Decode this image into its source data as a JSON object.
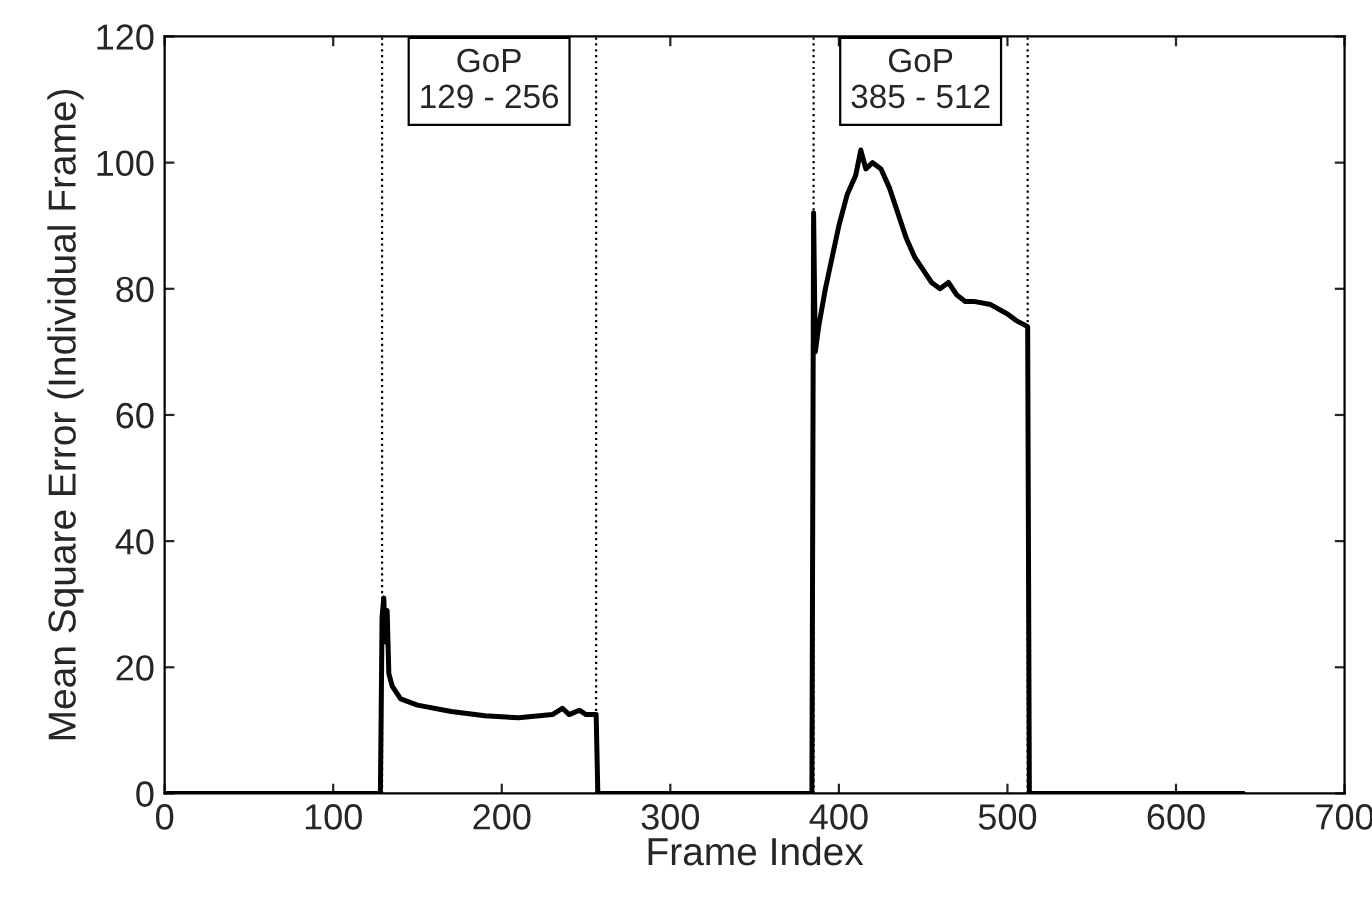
{
  "chart_data": {
    "type": "line",
    "xlabel": "Frame Index",
    "ylabel": "Mean Square Error (Individual Frame)",
    "xlim": [
      0,
      700
    ],
    "xticks": [
      0,
      100,
      200,
      300,
      400,
      500,
      600,
      700
    ],
    "ylim": [
      0,
      120
    ],
    "yticks": [
      0,
      20,
      40,
      60,
      80,
      100,
      120
    ],
    "grid": false,
    "legend": false,
    "marker": "none",
    "line_style": "solid",
    "series": [
      {
        "color": "#000000",
        "x": [
          0,
          128,
          129,
          130,
          131,
          132,
          133,
          135,
          140,
          150,
          170,
          190,
          210,
          230,
          236,
          240,
          246,
          250,
          256,
          257,
          384,
          385,
          386,
          388,
          392,
          396,
          400,
          405,
          410,
          413,
          416,
          420,
          425,
          430,
          435,
          440,
          445,
          450,
          455,
          460,
          465,
          470,
          475,
          480,
          490,
          500,
          505,
          512,
          513,
          640
        ],
        "values": [
          0,
          0,
          28,
          31,
          24,
          29,
          19,
          17,
          15,
          14,
          13,
          12.3,
          12,
          12.5,
          13.5,
          12.5,
          13.2,
          12.5,
          12.5,
          0,
          0,
          92,
          70,
          74,
          80,
          85,
          90,
          95,
          98,
          102,
          99,
          100,
          99,
          96,
          92,
          88,
          85,
          83,
          81,
          80,
          81,
          79,
          78,
          78,
          77.5,
          76,
          75,
          74,
          0,
          0
        ]
      }
    ],
    "ref_lines": [
      {
        "axis": "x",
        "value": 129,
        "color": "#000000",
        "line_style": "dotted"
      },
      {
        "axis": "x",
        "value": 256,
        "color": "#000000",
        "line_style": "dotted"
      },
      {
        "axis": "x",
        "value": 385,
        "color": "#000000",
        "line_style": "dotted"
      },
      {
        "axis": "x",
        "value": 512,
        "color": "#000000",
        "line_style": "dotted"
      }
    ],
    "annotations": [
      "GoP\n129 - 256",
      "GoP\n385 - 512"
    ]
  }
}
